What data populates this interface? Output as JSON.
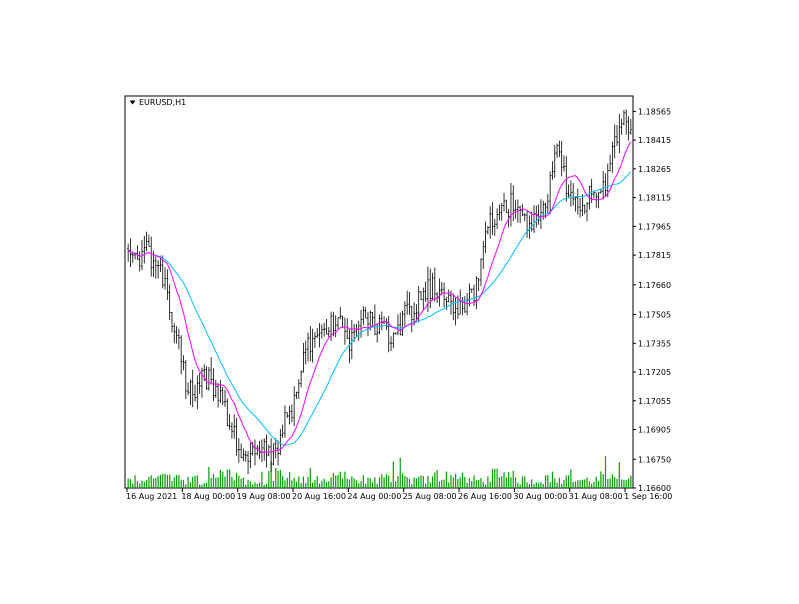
{
  "chart_data": {
    "type": "candlestick",
    "symbol_label": "EURUSD,H1",
    "ylim": [
      1.166,
      1.1864
    ],
    "y_ticks": [
      {
        "value": 1.18565,
        "label": "1.18565"
      },
      {
        "value": 1.18415,
        "label": "1.18415"
      },
      {
        "value": 1.18265,
        "label": "1.18265"
      },
      {
        "value": 1.18115,
        "label": "1.18115"
      },
      {
        "value": 1.17965,
        "label": "1.17965"
      },
      {
        "value": 1.17815,
        "label": "1.17815"
      },
      {
        "value": 1.1766,
        "label": "1.17660"
      },
      {
        "value": 1.17505,
        "label": "1.17505"
      },
      {
        "value": 1.17355,
        "label": "1.17355"
      },
      {
        "value": 1.17205,
        "label": "1.17205"
      },
      {
        "value": 1.17055,
        "label": "1.17055"
      },
      {
        "value": 1.16905,
        "label": "1.16905"
      },
      {
        "value": 1.1675,
        "label": "1.16750"
      },
      {
        "value": 1.166,
        "label": "1.16600"
      }
    ],
    "x_ticks": [
      {
        "index": 0,
        "label": "16 Aug 2021"
      },
      {
        "index": 24,
        "label": "18 Aug 00:00"
      },
      {
        "index": 48,
        "label": "19 Aug 08:00"
      },
      {
        "index": 72,
        "label": "20 Aug 16:00"
      },
      {
        "index": 96,
        "label": "24 Aug 00:00"
      },
      {
        "index": 120,
        "label": "25 Aug 08:00"
      },
      {
        "index": 144,
        "label": "26 Aug 16:00"
      },
      {
        "index": 168,
        "label": "30 Aug 00:00"
      },
      {
        "index": 192,
        "label": "31 Aug 08:00"
      },
      {
        "index": 216,
        "label": "1 Sep 16:00"
      }
    ],
    "anchors": [
      [
        0,
        1.1785
      ],
      [
        4,
        1.1778
      ],
      [
        8,
        1.1788
      ],
      [
        12,
        1.1772
      ],
      [
        16,
        1.177
      ],
      [
        20,
        1.1742
      ],
      [
        22,
        1.1735
      ],
      [
        25,
        1.1715
      ],
      [
        28,
        1.171
      ],
      [
        33,
        1.172
      ],
      [
        37,
        1.1712
      ],
      [
        41,
        1.1705
      ],
      [
        44,
        1.1695
      ],
      [
        47,
        1.1683
      ],
      [
        50,
        1.168
      ],
      [
        54,
        1.1678
      ],
      [
        58,
        1.1682
      ],
      [
        62,
        1.1676
      ],
      [
        65,
        1.1682
      ],
      [
        68,
        1.1695
      ],
      [
        72,
        1.1705
      ],
      [
        76,
        1.1725
      ],
      [
        80,
        1.174
      ],
      [
        84,
        1.1746
      ],
      [
        88,
        1.1745
      ],
      [
        92,
        1.1745
      ],
      [
        96,
        1.1737
      ],
      [
        100,
        1.1744
      ],
      [
        104,
        1.175
      ],
      [
        108,
        1.1745
      ],
      [
        112,
        1.1742
      ],
      [
        116,
        1.1738
      ],
      [
        120,
        1.175
      ],
      [
        124,
        1.1752
      ],
      [
        128,
        1.1762
      ],
      [
        132,
        1.1764
      ],
      [
        136,
        1.176
      ],
      [
        140,
        1.1755
      ],
      [
        144,
        1.1752
      ],
      [
        148,
        1.1758
      ],
      [
        152,
        1.1768
      ],
      [
        155,
        1.1795
      ],
      [
        158,
        1.1798
      ],
      [
        162,
        1.1805
      ],
      [
        166,
        1.1808
      ],
      [
        170,
        1.18
      ],
      [
        174,
        1.1798
      ],
      [
        178,
        1.1805
      ],
      [
        182,
        1.1812
      ],
      [
        185,
        1.1835
      ],
      [
        188,
        1.183
      ],
      [
        191,
        1.1812
      ],
      [
        194,
        1.181
      ],
      [
        197,
        1.1808
      ],
      [
        200,
        1.1815
      ],
      [
        203,
        1.1812
      ],
      [
        206,
        1.1818
      ],
      [
        209,
        1.1826
      ],
      [
        212,
        1.1845
      ],
      [
        215,
        1.1855
      ],
      [
        218,
        1.1845
      ]
    ],
    "ma_fast_color": "#ff00ff",
    "ma_slow_color": "#00bfff",
    "volume_color": "#00a000",
    "candle_color": "#000000",
    "bar_count": 219
  }
}
